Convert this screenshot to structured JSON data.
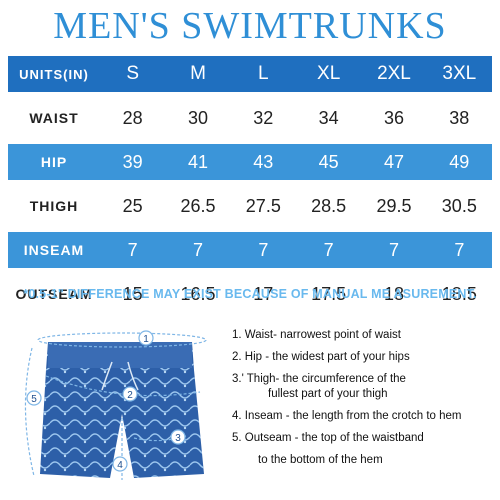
{
  "title": "MEN'S SWIMTRUNKS",
  "table": {
    "header": {
      "label": "UNITS(IN)",
      "sizes": [
        "S",
        "M",
        "L",
        "XL",
        "2XL",
        "3XL"
      ]
    },
    "rows": [
      {
        "label": "WAIST",
        "values": [
          "28",
          "30",
          "32",
          "34",
          "36",
          "38"
        ]
      },
      {
        "label": "HIP",
        "values": [
          "39",
          "41",
          "43",
          "45",
          "47",
          "49"
        ]
      },
      {
        "label": "THIGH",
        "values": [
          "25",
          "26.5",
          "27.5",
          "28.5",
          "29.5",
          "30.5"
        ]
      },
      {
        "label": "INSEAM",
        "values": [
          "7",
          "7",
          "7",
          "7",
          "7",
          "7"
        ]
      },
      {
        "label": "OUTSEAM",
        "values": [
          "15",
          "16.5",
          "17",
          "17.5",
          "18",
          "18.5"
        ]
      }
    ]
  },
  "note": "*0.5-1\" DIFFERENCE MAY EXIST BECAUSE OF MANUAL ME ASUREMENT.",
  "diagram": {
    "markers": [
      "1",
      "2",
      "3",
      "4",
      "5"
    ]
  },
  "guide": {
    "item1": "1. Waist- narrowest point of waist",
    "item2": "2. Hip - the widest part of your hips",
    "item3a": "3.' Thigh- the circumference of the",
    "item3b": "fullest part of your thigh",
    "item4": "4. Inseam - the length from the crotch to hem",
    "item5a": "5. Outseam - the top of the waistband",
    "item5b": "to the bottom of the hem"
  },
  "colors": {
    "title": "#2f8fd6",
    "row_dark": "#1f6fbf",
    "row_light": "#3b95d9",
    "note": "#69b9ee",
    "trunks": "#2d5fa8"
  }
}
